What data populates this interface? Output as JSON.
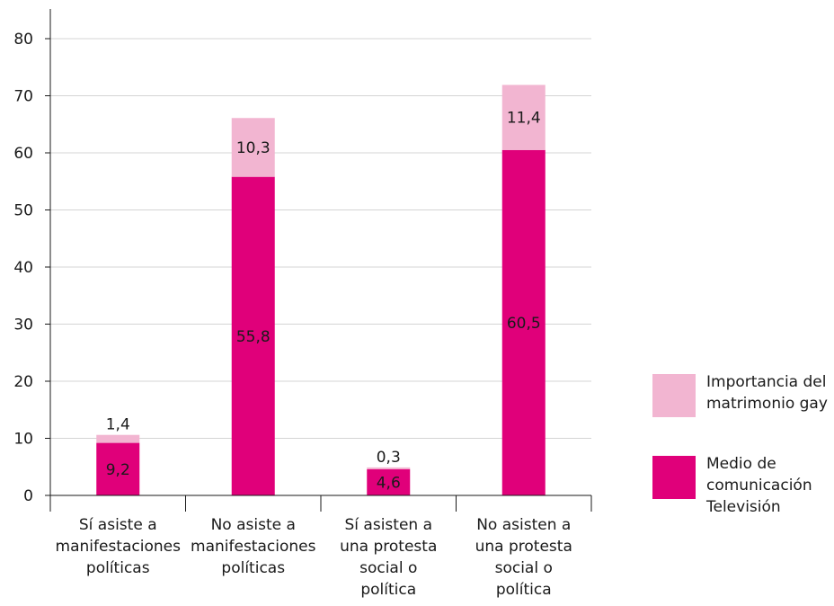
{
  "chart_data": {
    "type": "bar",
    "stacked": true,
    "categories": [
      [
        "Sí asiste a",
        "manifestaciones",
        "políticas"
      ],
      [
        "No asiste a",
        "manifestaciones",
        "políticas"
      ],
      [
        "Sí asisten a",
        "una protesta",
        "social o",
        "política"
      ],
      [
        "No asisten a",
        "una protesta",
        "social o",
        "política"
      ]
    ],
    "series": [
      {
        "name_lines": [
          "Medio de",
          "comunicación",
          "Televisión"
        ],
        "color": "#e0007a",
        "values": [
          9.2,
          55.8,
          4.6,
          60.5
        ],
        "labels": [
          "9,2",
          "55,8",
          "4,6",
          "60,5"
        ]
      },
      {
        "name_lines": [
          "Importancia del",
          "matrimonio gay"
        ],
        "color": "#f2b5d1",
        "values": [
          1.4,
          10.3,
          0.3,
          11.4
        ],
        "labels": [
          "1,4",
          "10,3",
          "0,3",
          "11,4"
        ]
      }
    ],
    "ylim": [
      0,
      80
    ],
    "yticks": [
      0,
      10,
      20,
      30,
      40,
      50,
      60,
      70,
      80
    ],
    "grid": true,
    "legend_position": "right"
  }
}
